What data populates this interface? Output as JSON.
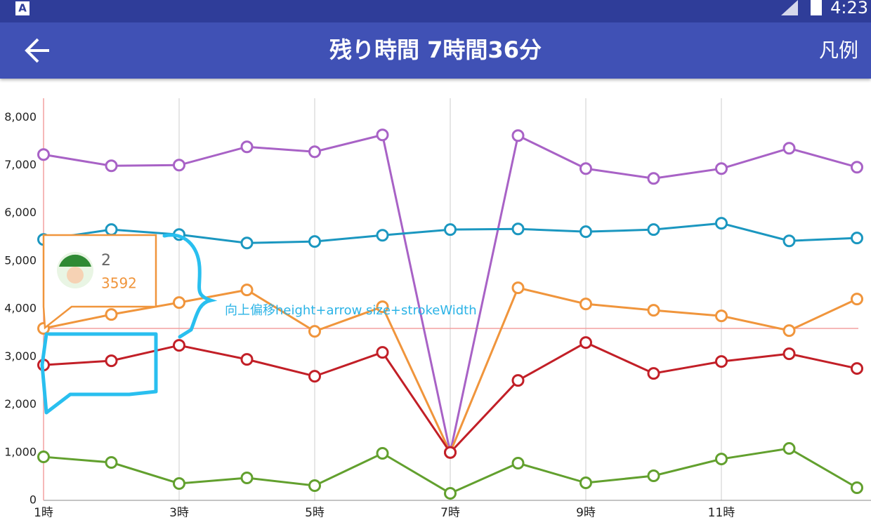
{
  "status_bar": {
    "time": "4:23"
  },
  "app_bar": {
    "title": "残り時間 7時間36分",
    "action": "凡例"
  },
  "chart_data": {
    "type": "line",
    "categories": [
      "1時",
      null,
      "3時",
      null,
      "5時",
      null,
      "7時",
      null,
      "9時",
      null,
      "11時",
      null,
      null
    ],
    "series": [
      {
        "color": "#a862c6",
        "values": [
          7223,
          6989,
          7003,
          7385,
          7282,
          7634,
          1000,
          7619,
          6930,
          6725,
          6930,
          7355,
          6960
        ]
      },
      {
        "color": "#1b97c0",
        "values": [
          5450,
          5656,
          5553,
          5377,
          5407,
          5538,
          5656,
          5670,
          5612,
          5656,
          5788,
          5421,
          5480
        ]
      },
      {
        "color": "#f0953c",
        "values": [
          3592,
          3883,
          4132,
          4396,
          3531,
          4044,
          1000,
          4440,
          4103,
          3971,
          3853,
          3546,
          4205
        ]
      },
      {
        "color": "#c21f27",
        "values": [
          2828,
          2916,
          3238,
          2945,
          2593,
          3092,
          1000,
          2505,
          3297,
          2652,
          2901,
          3062,
          2755
        ]
      },
      {
        "color": "#62a02e",
        "values": [
          908,
          791,
          352,
          469,
          308,
          982,
          147,
          777,
          366,
          513,
          864,
          1084,
          264
        ]
      }
    ],
    "ylim": [
      0,
      8400
    ],
    "yticks": [
      0,
      {
        "value": 1000,
        "label": "1,000"
      },
      {
        "value": 2000,
        "label": "2,000"
      },
      {
        "value": 3000,
        "label": "3,000"
      },
      {
        "value": 4000,
        "label": "4,000"
      },
      {
        "value": 5000,
        "label": "5,000"
      },
      {
        "value": 6000,
        "label": "6,000"
      },
      {
        "value": 7000,
        "label": "7,000"
      },
      {
        "value": 8000,
        "label": "8,000"
      }
    ],
    "marker": {
      "label": "2"
    },
    "annotation": "向上偏移height+arrow size+strokeWidth"
  }
}
